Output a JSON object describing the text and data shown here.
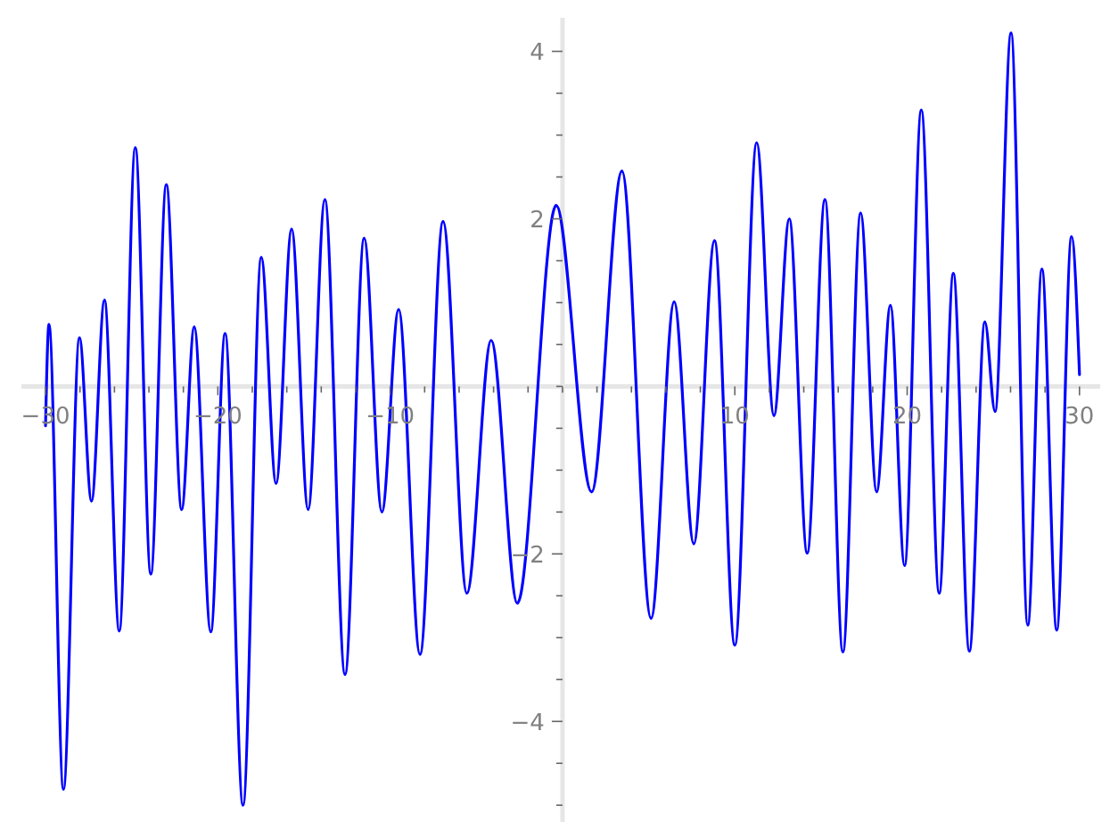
{
  "chart_data": {
    "type": "line",
    "x": [
      -30.0,
      -29.8,
      -28.96,
      -28.03,
      -27.33,
      -26.58,
      -25.72,
      -24.79,
      -23.89,
      -22.99,
      -22.1,
      -21.37,
      -20.41,
      -19.58,
      -18.54,
      -17.48,
      -16.62,
      -15.72,
      -14.76,
      -13.79,
      -12.62,
      -11.51,
      -10.48,
      -9.51,
      -8.27,
      -6.93,
      -5.55,
      -4.14,
      -2.62,
      -0.37,
      1.69,
      3.45,
      5.14,
      6.48,
      7.62,
      8.82,
      10.0,
      11.27,
      12.27,
      13.16,
      14.2,
      15.23,
      16.27,
      17.3,
      18.23,
      19.03,
      19.85,
      20.82,
      21.86,
      22.68,
      23.61,
      24.51,
      25.1,
      26.03,
      27.0,
      27.82,
      28.68,
      29.54,
      30.0
    ],
    "series": [
      {
        "color": "#0000ff",
        "values": [
          -0.47,
          0.74,
          -4.81,
          0.58,
          -1.37,
          1.03,
          -2.92,
          2.85,
          -2.24,
          2.41,
          -1.47,
          0.71,
          -2.93,
          0.63,
          -5.0,
          1.54,
          -1.16,
          1.88,
          -1.47,
          2.23,
          -3.44,
          1.77,
          -1.5,
          0.92,
          -3.2,
          1.97,
          -2.47,
          0.55,
          -2.59,
          2.16,
          -1.26,
          2.57,
          -2.77,
          1.01,
          -1.88,
          1.74,
          -3.09,
          2.91,
          -0.35,
          2.0,
          -1.99,
          2.23,
          -3.17,
          2.07,
          -1.26,
          0.97,
          -2.14,
          3.3,
          -2.47,
          1.35,
          -3.16,
          0.77,
          -0.3,
          4.22,
          -2.85,
          1.4,
          -2.91,
          1.79,
          0.14
        ]
      }
    ],
    "xlim": [
      -31.4,
      31.2
    ],
    "ylim": [
      -5.2,
      4.4
    ],
    "xticks": [
      {
        "value": -30,
        "label": "−30"
      },
      {
        "value": -28,
        "label": null
      },
      {
        "value": -26,
        "label": null
      },
      {
        "value": -24,
        "label": null
      },
      {
        "value": -22,
        "label": null
      },
      {
        "value": -20,
        "label": "−20"
      },
      {
        "value": -18,
        "label": null
      },
      {
        "value": -16,
        "label": null
      },
      {
        "value": -14,
        "label": null
      },
      {
        "value": -12,
        "label": null
      },
      {
        "value": -10,
        "label": "−10"
      },
      {
        "value": -8,
        "label": null
      },
      {
        "value": -6,
        "label": null
      },
      {
        "value": -4,
        "label": null
      },
      {
        "value": -2,
        "label": null
      },
      {
        "value": 0,
        "label": null
      },
      {
        "value": 2,
        "label": null
      },
      {
        "value": 4,
        "label": null
      },
      {
        "value": 6,
        "label": null
      },
      {
        "value": 8,
        "label": null
      },
      10,
      {
        "value": 12,
        "label": null
      },
      {
        "value": 14,
        "label": null
      },
      {
        "value": 16,
        "label": null
      },
      {
        "value": 18,
        "label": null
      },
      20,
      {
        "value": 22,
        "label": null
      },
      {
        "value": 24,
        "label": null
      },
      {
        "value": 26,
        "label": null
      },
      {
        "value": 28,
        "label": null
      },
      30
    ],
    "yticks": [
      {
        "value": -5,
        "label": null
      },
      {
        "value": -4.5,
        "label": null
      },
      {
        "value": -4,
        "label": "−4"
      },
      {
        "value": -3.5,
        "label": null
      },
      {
        "value": -3,
        "label": null
      },
      {
        "value": -2.5,
        "label": null
      },
      {
        "value": -2,
        "label": "−2"
      },
      {
        "value": -1.5,
        "label": null
      },
      {
        "value": -1,
        "label": null
      },
      {
        "value": -0.5,
        "label": null
      },
      {
        "value": 0,
        "label": null
      },
      {
        "value": 0.5,
        "label": null
      },
      {
        "value": 1,
        "label": null
      },
      {
        "value": 1.5,
        "label": null
      },
      2,
      {
        "value": 2.5,
        "label": null
      },
      {
        "value": 3,
        "label": null
      },
      {
        "value": 3.5,
        "label": null
      },
      4
    ],
    "marker": "none",
    "line_style": "solid"
  }
}
